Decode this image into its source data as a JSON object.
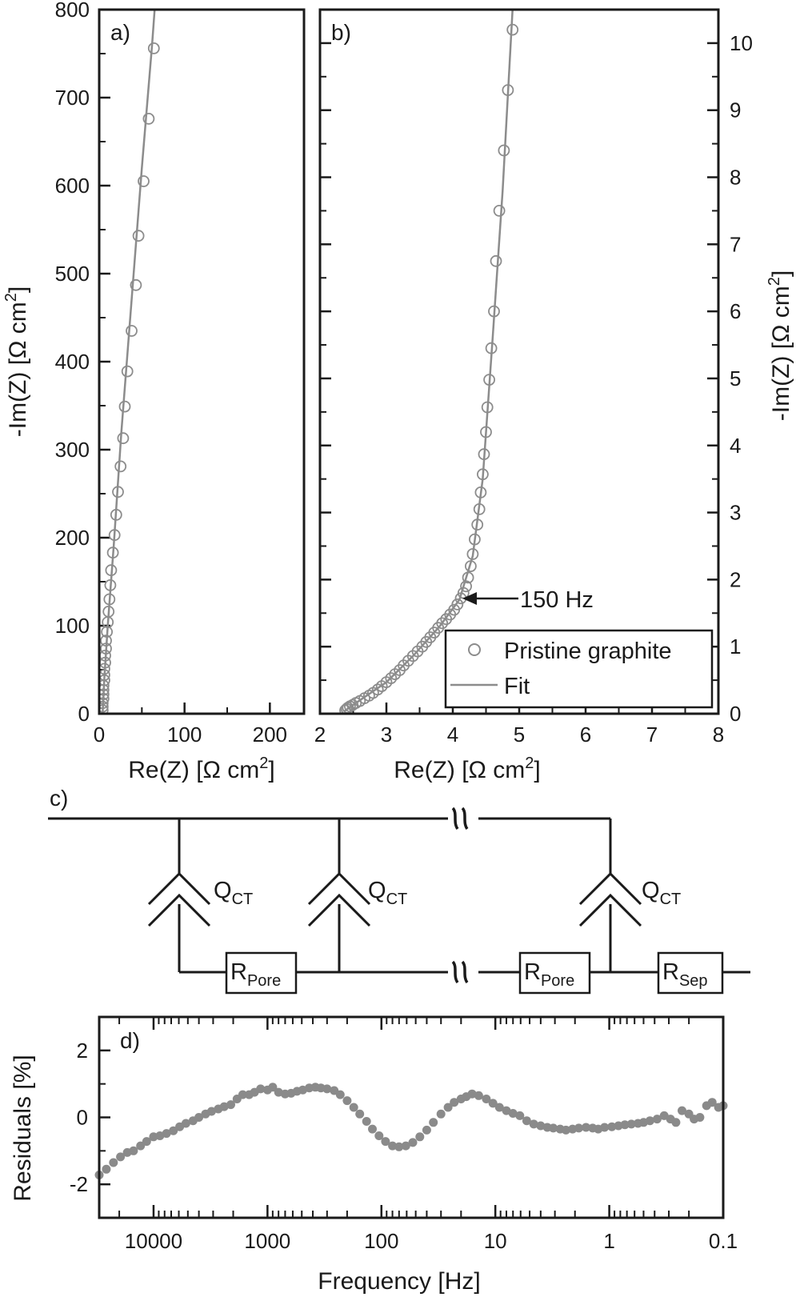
{
  "chart_data": [
    {
      "panel": "a)",
      "type": "scatter",
      "xlabel": "Re(Z) [Ω cm",
      "xlabel_sup": "2",
      "xlabel_end": "]",
      "ylabel": "-Im(Z) [Ω cm",
      "ylabel_sup": "2",
      "ylabel_end": "]",
      "xlim": [
        0,
        240
      ],
      "ylim": [
        0,
        800
      ],
      "xticks": [
        0,
        100,
        200
      ],
      "yticks": [
        0,
        100,
        200,
        300,
        400,
        500,
        600,
        700,
        800
      ],
      "series": [
        {
          "kind": "markers",
          "points": [
            [
              64,
              756
            ],
            [
              58,
              676
            ],
            [
              52,
              605
            ],
            [
              46,
              543
            ],
            [
              43,
              487
            ],
            [
              38,
              435
            ],
            [
              33,
              389
            ],
            [
              30,
              349
            ],
            [
              28,
              313
            ],
            [
              25,
              281
            ],
            [
              22,
              252
            ],
            [
              20,
              226
            ],
            [
              18,
              203
            ],
            [
              16,
              183
            ],
            [
              14,
              163
            ],
            [
              13,
              146
            ],
            [
              12,
              130
            ],
            [
              11,
              116
            ],
            [
              10,
              104
            ],
            [
              9,
              93
            ],
            [
              8,
              83
            ],
            [
              8,
              74
            ],
            [
              7,
              66
            ],
            [
              7,
              58
            ],
            [
              6,
              51
            ],
            [
              6,
              44
            ],
            [
              6,
              38
            ],
            [
              5,
              32
            ],
            [
              5,
              27
            ],
            [
              5,
              22
            ],
            [
              5,
              17
            ],
            [
              4,
              12
            ],
            [
              4,
              8
            ],
            [
              4,
              4
            ]
          ]
        },
        {
          "kind": "line",
          "points": [
            [
              4,
              0
            ],
            [
              6,
              40
            ],
            [
              10,
              100
            ],
            [
              17,
              190
            ],
            [
              26,
              320
            ],
            [
              38,
              470
            ],
            [
              50,
              620
            ],
            [
              62,
              760
            ],
            [
              65,
              800
            ]
          ]
        }
      ]
    },
    {
      "panel": "b)",
      "type": "scatter",
      "xlabel": "Re(Z) [Ω cm",
      "xlabel_sup": "2",
      "xlabel_end": "]",
      "ylabel": "-Im(Z) [Ω cm",
      "ylabel_sup": "2",
      "ylabel_end": "]",
      "ylabel_side": "right",
      "xlim": [
        2,
        8
      ],
      "ylim": [
        0,
        10.5
      ],
      "xticks": [
        2,
        3,
        4,
        5,
        6,
        7,
        8
      ],
      "yticks": [
        0,
        1,
        2,
        3,
        4,
        5,
        6,
        7,
        8,
        9,
        10
      ],
      "annotation": {
        "text": "150 Hz",
        "x": 4.2,
        "y": 1.75
      },
      "legend": {
        "placement": "bottom-right",
        "entries": [
          {
            "label": "Pristine graphite",
            "kind": "marker"
          },
          {
            "label": "Fit",
            "kind": "line"
          }
        ]
      },
      "series": [
        {
          "name": "Pristine graphite",
          "kind": "markers",
          "points": [
            [
              4.9,
              10.2
            ],
            [
              4.83,
              9.3
            ],
            [
              4.77,
              8.4
            ],
            [
              4.7,
              7.5
            ],
            [
              4.65,
              6.75
            ],
            [
              4.62,
              6.0
            ],
            [
              4.58,
              5.45
            ],
            [
              4.55,
              4.98
            ],
            [
              4.52,
              4.57
            ],
            [
              4.5,
              4.2
            ],
            [
              4.47,
              3.87
            ],
            [
              4.45,
              3.57
            ],
            [
              4.42,
              3.3
            ],
            [
              4.4,
              3.05
            ],
            [
              4.37,
              2.82
            ],
            [
              4.33,
              2.6
            ],
            [
              4.3,
              2.38
            ],
            [
              4.27,
              2.2
            ],
            [
              4.23,
              2.03
            ],
            [
              4.2,
              1.9
            ],
            [
              4.16,
              1.8
            ],
            [
              4.12,
              1.72
            ],
            [
              4.07,
              1.63
            ],
            [
              4.02,
              1.55
            ],
            [
              3.96,
              1.48
            ],
            [
              3.9,
              1.41
            ],
            [
              3.84,
              1.35
            ],
            [
              3.78,
              1.28
            ],
            [
              3.72,
              1.21
            ],
            [
              3.66,
              1.14
            ],
            [
              3.6,
              1.07
            ],
            [
              3.54,
              1.0
            ],
            [
              3.47,
              0.93
            ],
            [
              3.4,
              0.86
            ],
            [
              3.33,
              0.79
            ],
            [
              3.26,
              0.72
            ],
            [
              3.2,
              0.65
            ],
            [
              3.13,
              0.59
            ],
            [
              3.07,
              0.53
            ],
            [
              3.0,
              0.47
            ],
            [
              2.93,
              0.41
            ],
            [
              2.87,
              0.36
            ],
            [
              2.8,
              0.31
            ],
            [
              2.74,
              0.27
            ],
            [
              2.67,
              0.23
            ],
            [
              2.6,
              0.19
            ],
            [
              2.54,
              0.16
            ],
            [
              2.49,
              0.13
            ],
            [
              2.45,
              0.11
            ],
            [
              2.42,
              0.09
            ],
            [
              2.4,
              0.07
            ],
            [
              2.38,
              0.05
            ]
          ]
        },
        {
          "name": "Fit",
          "kind": "line",
          "points": [
            [
              2.37,
              0.04
            ],
            [
              2.6,
              0.2
            ],
            [
              3.0,
              0.47
            ],
            [
              3.4,
              0.86
            ],
            [
              3.8,
              1.3
            ],
            [
              4.1,
              1.7
            ],
            [
              4.3,
              2.35
            ],
            [
              4.45,
              3.5
            ],
            [
              4.6,
              5.6
            ],
            [
              4.75,
              7.8
            ],
            [
              4.9,
              10.5
            ]
          ]
        }
      ]
    },
    {
      "panel": "d)",
      "type": "scatter",
      "xlabel": "Frequency [Hz]",
      "ylabel": "Residuals [%]",
      "xscale": "log",
      "xaxis_reversed": true,
      "xlim": [
        30000,
        0.1
      ],
      "ylim": [
        -3,
        3
      ],
      "xticks": [
        10000,
        1000,
        100,
        10,
        1,
        0.1
      ],
      "xtick_labels": [
        "10000",
        "1000",
        "100",
        "10",
        "1",
        "0.1"
      ],
      "yticks": [
        -2,
        0,
        2
      ],
      "series": [
        {
          "kind": "markers",
          "points": [
            [
              30000,
              -1.72
            ],
            [
              26000,
              -1.55
            ],
            [
              22500,
              -1.35
            ],
            [
              19500,
              -1.18
            ],
            [
              17000,
              -1.05
            ],
            [
              15000,
              -1.0
            ],
            [
              13000,
              -0.85
            ],
            [
              11500,
              -0.72
            ],
            [
              10000,
              -0.58
            ],
            [
              8800,
              -0.55
            ],
            [
              7700,
              -0.48
            ],
            [
              6700,
              -0.4
            ],
            [
              5900,
              -0.28
            ],
            [
              5200,
              -0.18
            ],
            [
              4500,
              -0.1
            ],
            [
              4000,
              0.0
            ],
            [
              3500,
              0.1
            ],
            [
              3100,
              0.18
            ],
            [
              2700,
              0.25
            ],
            [
              2400,
              0.32
            ],
            [
              2100,
              0.38
            ],
            [
              1850,
              0.55
            ],
            [
              1650,
              0.68
            ],
            [
              1450,
              0.68
            ],
            [
              1300,
              0.75
            ],
            [
              1150,
              0.85
            ],
            [
              1000,
              0.82
            ],
            [
              900,
              0.9
            ],
            [
              800,
              0.75
            ],
            [
              700,
              0.7
            ],
            [
              620,
              0.72
            ],
            [
              550,
              0.78
            ],
            [
              490,
              0.82
            ],
            [
              430,
              0.88
            ],
            [
              380,
              0.9
            ],
            [
              340,
              0.88
            ],
            [
              300,
              0.85
            ],
            [
              260,
              0.8
            ],
            [
              230,
              0.68
            ],
            [
              200,
              0.5
            ],
            [
              175,
              0.3
            ],
            [
              155,
              0.1
            ],
            [
              135,
              -0.12
            ],
            [
              120,
              -0.35
            ],
            [
              105,
              -0.55
            ],
            [
              92,
              -0.72
            ],
            [
              80,
              -0.85
            ],
            [
              70,
              -0.88
            ],
            [
              61,
              -0.85
            ],
            [
              53,
              -0.75
            ],
            [
              46,
              -0.58
            ],
            [
              40,
              -0.38
            ],
            [
              35,
              -0.15
            ],
            [
              30,
              0.1
            ],
            [
              26,
              0.3
            ],
            [
              23,
              0.45
            ],
            [
              20,
              0.55
            ],
            [
              18,
              0.62
            ],
            [
              16,
              0.7
            ],
            [
              14,
              0.65
            ],
            [
              12,
              0.55
            ],
            [
              10.5,
              0.42
            ],
            [
              9.2,
              0.3
            ],
            [
              8,
              0.2
            ],
            [
              7,
              0.12
            ],
            [
              6.1,
              0.05
            ],
            [
              5.3,
              -0.1
            ],
            [
              4.6,
              -0.2
            ],
            [
              4,
              -0.25
            ],
            [
              3.5,
              -0.3
            ],
            [
              3.1,
              -0.32
            ],
            [
              2.7,
              -0.35
            ],
            [
              2.4,
              -0.38
            ],
            [
              2.1,
              -0.35
            ],
            [
              1.85,
              -0.32
            ],
            [
              1.6,
              -0.3
            ],
            [
              1.4,
              -0.32
            ],
            [
              1.25,
              -0.35
            ],
            [
              1.1,
              -0.3
            ],
            [
              0.95,
              -0.28
            ],
            [
              0.83,
              -0.25
            ],
            [
              0.73,
              -0.22
            ],
            [
              0.64,
              -0.2
            ],
            [
              0.56,
              -0.18
            ],
            [
              0.5,
              -0.15
            ],
            [
              0.44,
              -0.1
            ],
            [
              0.38,
              -0.05
            ],
            [
              0.33,
              0.05
            ],
            [
              0.29,
              -0.05
            ],
            [
              0.26,
              -0.15
            ],
            [
              0.23,
              0.2
            ],
            [
              0.2,
              0.1
            ],
            [
              0.18,
              -0.05
            ],
            [
              0.16,
              0.0
            ],
            [
              0.14,
              0.35
            ],
            [
              0.125,
              0.45
            ],
            [
              0.11,
              0.3
            ],
            [
              0.1,
              0.35
            ]
          ]
        }
      ]
    }
  ],
  "circuit": {
    "panel": "c)",
    "q_label": "Q",
    "q_sub": "CT",
    "r_pore_label": "R",
    "r_pore_sub": "Pore",
    "r_sep_label": "R",
    "r_sep_sub": "Sep",
    "break_symbol": "≈"
  },
  "colors": {
    "axis": "#1a1a1a",
    "marker": "#8c8c8c",
    "fit_line": "#8c8c8c",
    "residual_marker": "#8a8a8a"
  }
}
